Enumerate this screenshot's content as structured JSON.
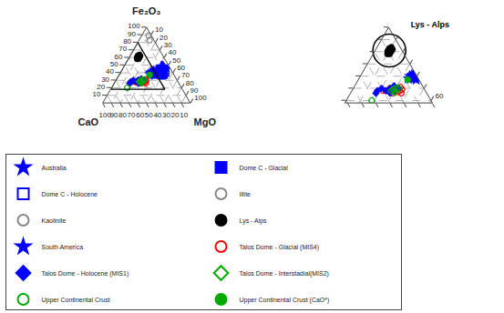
{
  "chart_data": {
    "type": "ternary",
    "axes": [
      {
        "label": "CaO",
        "lim": [
          0,
          100
        ],
        "ticks": [
          10,
          20,
          30,
          40,
          50,
          60,
          70,
          80,
          90,
          100
        ]
      },
      {
        "label": "MgO",
        "lim": [
          0,
          100
        ],
        "ticks": [
          10,
          20,
          30,
          40,
          50,
          60,
          70,
          80,
          90,
          100
        ]
      },
      {
        "label": "Fe₂O₃",
        "lim": [
          0,
          100
        ],
        "ticks": [
          10,
          20,
          30,
          40,
          50,
          60,
          70,
          80,
          90,
          100
        ]
      }
    ],
    "grid": true,
    "legend": "bottom",
    "series": [
      {
        "name": "Australia",
        "color": "blue",
        "marker": "star",
        "values": [
          [
            8,
            47,
            45
          ],
          [
            7,
            48,
            45
          ],
          [
            9,
            46,
            45
          ],
          [
            8,
            44,
            48
          ],
          [
            10,
            45,
            45
          ],
          [
            9,
            46,
            45
          ],
          [
            8,
            47,
            45
          ],
          [
            7,
            48,
            45
          ],
          [
            9,
            44,
            47
          ],
          [
            10,
            44,
            46
          ],
          [
            8,
            45,
            47
          ],
          [
            9,
            43,
            48
          ],
          [
            10,
            43,
            47
          ],
          [
            11,
            44,
            45
          ],
          [
            9,
            45,
            46
          ],
          [
            8,
            46,
            46
          ],
          [
            7,
            45,
            48
          ],
          [
            10,
            45,
            45
          ],
          [
            8,
            47,
            45
          ],
          [
            9,
            48,
            43
          ],
          [
            10,
            47,
            43
          ],
          [
            11,
            46,
            43
          ],
          [
            12,
            45,
            43
          ],
          [
            8,
            49,
            43
          ],
          [
            9,
            50,
            41
          ],
          [
            7,
            49,
            44
          ],
          [
            8,
            48,
            44
          ],
          [
            9,
            47,
            44
          ],
          [
            10,
            46,
            44
          ],
          [
            11,
            45,
            44
          ]
        ]
      },
      {
        "name": "Dome C - Glacial",
        "color": "blue",
        "marker": "square",
        "values": [
          [
            12,
            52,
            36
          ],
          [
            14,
            51,
            35
          ],
          [
            13,
            52,
            35
          ],
          [
            15,
            50,
            35
          ],
          [
            11,
            53,
            36
          ]
        ]
      },
      {
        "name": "Dome C - Holocene",
        "color": "blue",
        "marker": "square-open",
        "values": [
          [
            8,
            53,
            39
          ]
        ]
      },
      {
        "name": "Illite",
        "color": "#888888",
        "marker": "circle-open",
        "values": [
          [
            5,
            12,
            83
          ]
        ]
      },
      {
        "name": "Kaolinite",
        "color": "#888888",
        "marker": "circle-open",
        "values": [
          [
            3,
            8,
            89
          ]
        ]
      },
      {
        "name": "Lys - Alps",
        "color": "black",
        "marker": "circle",
        "values": [
          [
            28,
            11,
            61
          ],
          [
            30,
            9,
            61
          ],
          [
            32,
            10,
            58
          ],
          [
            30,
            12,
            58
          ],
          [
            28,
            12,
            60
          ],
          [
            26,
            12,
            62
          ],
          [
            29,
            11,
            60
          ],
          [
            31,
            9,
            60
          ],
          [
            30,
            10,
            60
          ],
          [
            28,
            9,
            63
          ],
          [
            26,
            10,
            64
          ],
          [
            29,
            9,
            62
          ],
          [
            27,
            11,
            62
          ],
          [
            31,
            11,
            58
          ]
        ]
      },
      {
        "name": "South America",
        "color": "blue",
        "marker": "star",
        "values": [
          [
            22,
            38,
            40
          ],
          [
            24,
            37,
            39
          ],
          [
            20,
            39,
            41
          ],
          [
            22,
            41,
            37
          ],
          [
            25,
            37,
            38
          ],
          [
            23,
            39,
            38
          ],
          [
            25,
            35,
            40
          ],
          [
            27,
            35,
            38
          ],
          [
            21,
            37,
            42
          ],
          [
            19,
            41,
            40
          ],
          [
            23,
            36,
            41
          ],
          [
            21,
            40,
            39
          ]
        ]
      },
      {
        "name": "Talos Dome - Glacial (MIS4)",
        "color": "red",
        "marker": "circle-open",
        "values": [
          [
            38,
            32,
            30
          ],
          [
            42,
            28,
            30
          ],
          [
            40,
            30,
            30
          ],
          [
            36,
            33,
            31
          ],
          [
            44,
            26,
            30
          ],
          [
            38,
            34,
            28
          ],
          [
            36,
            35,
            29
          ],
          [
            46,
            26,
            28
          ],
          [
            40,
            33,
            27
          ],
          [
            42,
            31,
            27
          ],
          [
            44,
            30,
            26
          ],
          [
            38,
            36,
            26
          ],
          [
            48,
            24,
            28
          ],
          [
            50,
            22,
            28
          ]
        ]
      },
      {
        "name": "Talos Dome - Holocene (MIS1)",
        "color": "blue",
        "marker": "diamond",
        "values": [
          [
            42,
            30,
            28
          ],
          [
            44,
            28,
            28
          ],
          [
            46,
            26,
            28
          ],
          [
            40,
            30,
            30
          ],
          [
            38,
            32,
            30
          ],
          [
            44,
            26,
            30
          ],
          [
            42,
            28,
            30
          ],
          [
            46,
            28,
            26
          ],
          [
            50,
            20,
            30
          ],
          [
            48,
            24,
            28
          ],
          [
            40,
            28,
            32
          ],
          [
            54,
            18,
            28
          ],
          [
            56,
            18,
            26
          ]
        ]
      },
      {
        "name": "Talos Dome - Interstadial(MIS2)",
        "color": "#00aa00",
        "marker": "diamond-open",
        "values": [
          [
            40,
            30,
            30
          ],
          [
            42,
            29,
            29
          ],
          [
            38,
            32,
            30
          ],
          [
            44,
            28,
            28
          ],
          [
            42,
            31,
            27
          ]
        ]
      },
      {
        "name": "Upper Continental Crust",
        "color": "#00aa00",
        "marker": "circle-open",
        "values": [
          [
            62,
            18,
            20
          ],
          [
            28,
            35,
            37
          ]
        ]
      },
      {
        "name": "Upper Continental Crust (CaO*)",
        "color": "#00aa00",
        "marker": "circle",
        "values": [
          [
            28,
            35,
            37
          ]
        ]
      }
    ],
    "annotations": [
      {
        "text": "Lys - Alps",
        "at": [
          29,
          10,
          61
        ]
      }
    ],
    "inset": {
      "min": [
        20,
        0,
        18
      ],
      "ticks": [
        [],
        [
          60
        ],
        []
      ]
    }
  }
}
